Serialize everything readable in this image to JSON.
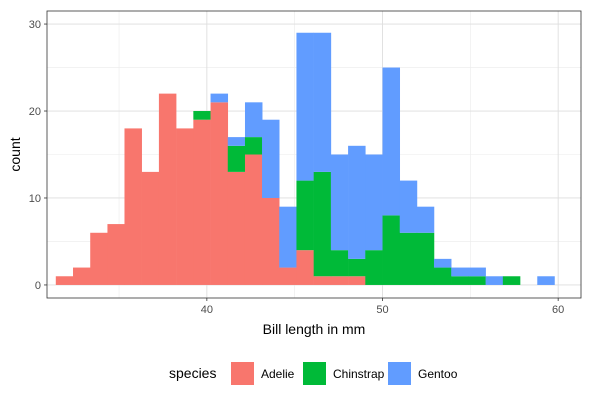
{
  "chart_data": {
    "type": "bar",
    "stacked": true,
    "bin_width": 0.9784,
    "x": [
      31.89,
      32.87,
      33.85,
      34.83,
      35.8,
      36.78,
      37.76,
      38.74,
      39.72,
      40.7,
      41.68,
      42.66,
      43.63,
      44.61,
      45.59,
      46.57,
      47.55,
      48.53,
      49.51,
      50.49,
      51.47,
      52.44,
      53.42,
      54.4,
      55.38,
      56.36,
      57.34,
      58.32,
      59.3,
      60.28
    ],
    "series": [
      {
        "name": "Adelie",
        "color": "#f8766d",
        "values": [
          1,
          2,
          6,
          7,
          18,
          13,
          22,
          18,
          19,
          21,
          13,
          15,
          10,
          2,
          4,
          1,
          1,
          1,
          0,
          0,
          0,
          0,
          0,
          0,
          0,
          0,
          0,
          0,
          0,
          0
        ]
      },
      {
        "name": "Chinstrap",
        "color": "#00ba38",
        "values": [
          0,
          0,
          0,
          0,
          0,
          0,
          0,
          0,
          1,
          0,
          3,
          2,
          0,
          0,
          8,
          12,
          3,
          2,
          4,
          8,
          6,
          6,
          2,
          1,
          1,
          0,
          1,
          0,
          0,
          0
        ]
      },
      {
        "name": "Gentoo",
        "color": "#619cff",
        "values": [
          0,
          0,
          0,
          0,
          0,
          0,
          0,
          0,
          0,
          1,
          1,
          4,
          9,
          7,
          17,
          16,
          11,
          13,
          11,
          17,
          6,
          3,
          1,
          1,
          1,
          1,
          0,
          0,
          1,
          0
        ]
      }
    ],
    "xlabel": "Bill length in mm",
    "ylabel": "count",
    "xlim": [
      30.9,
      61.3
    ],
    "ylim": [
      -1.5,
      31.5
    ],
    "xticks": [
      40,
      50,
      60
    ],
    "yticks": [
      0,
      10,
      20,
      30
    ],
    "grid": true,
    "legend_title": "species",
    "legend_position": "bottom"
  }
}
